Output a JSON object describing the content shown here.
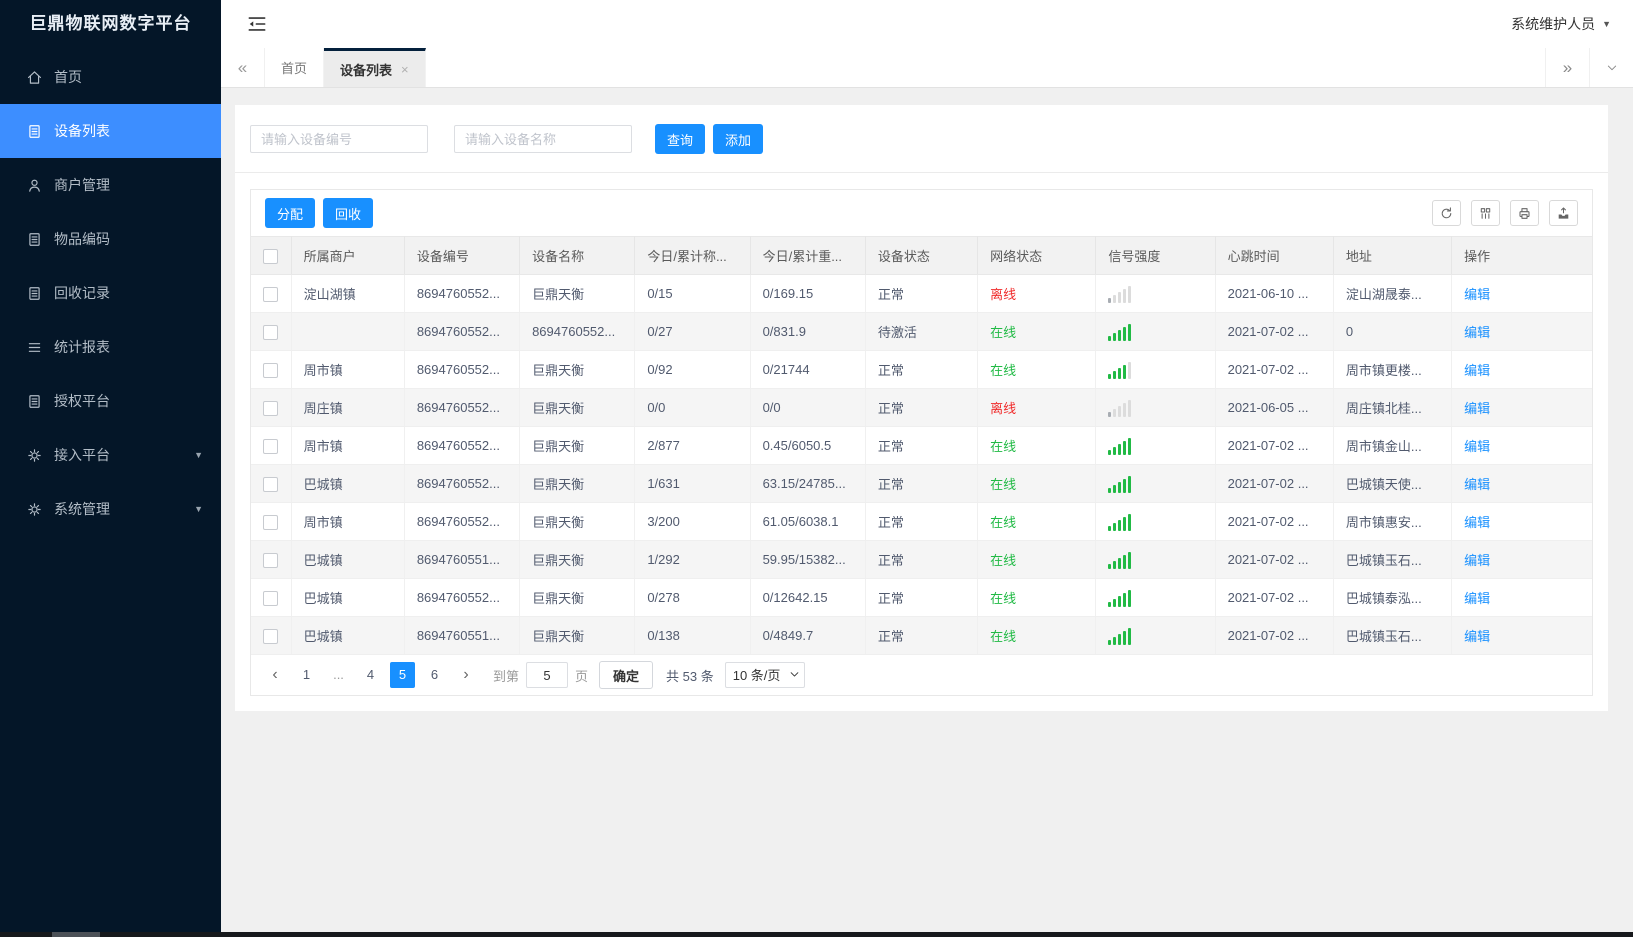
{
  "app": {
    "title": "巨鼎物联网数字平台",
    "user_name": "系统维护人员"
  },
  "sidebar": {
    "items": [
      {
        "key": "home",
        "label": "首页",
        "icon": "home-icon"
      },
      {
        "key": "device-list",
        "label": "设备列表",
        "icon": "doc-icon",
        "active": true
      },
      {
        "key": "merchant-mgmt",
        "label": "商户管理",
        "icon": "user-icon"
      },
      {
        "key": "item-code",
        "label": "物品编码",
        "icon": "doc-icon"
      },
      {
        "key": "recycle-records",
        "label": "回收记录",
        "icon": "doc-icon"
      },
      {
        "key": "statistics",
        "label": "统计报表",
        "icon": "lines-icon"
      },
      {
        "key": "auth-platform",
        "label": "授权平台",
        "icon": "doc-icon"
      },
      {
        "key": "access-platform",
        "label": "接入平台",
        "icon": "gear-icon",
        "expandable": true
      },
      {
        "key": "system-mgmt",
        "label": "系统管理",
        "icon": "gear-icon",
        "expandable": true
      }
    ]
  },
  "tabs": {
    "scroll_left": "«",
    "scroll_right": "»",
    "items": [
      {
        "key": "home",
        "label": "首页"
      },
      {
        "key": "device-list",
        "label": "设备列表",
        "active": true,
        "closable": true,
        "close_glyph": "×"
      }
    ]
  },
  "search": {
    "device_no_placeholder": "请输入设备编号",
    "device_name_placeholder": "请输入设备名称",
    "query_label": "查询",
    "add_label": "添加"
  },
  "grid": {
    "assign_label": "分配",
    "recycle_label": "回收",
    "tool_icons": [
      "refresh-icon",
      "columns-icon",
      "printer-icon",
      "export-icon"
    ]
  },
  "table": {
    "columns": [
      "所属商户",
      "设备编号",
      "设备名称",
      "今日/累计称...",
      "今日/累计重...",
      "设备状态",
      "网络状态",
      "信号强度",
      "心跳时间",
      "地址",
      "操作"
    ],
    "action_label": "编辑",
    "rows": [
      {
        "merchant": "淀山湖镇",
        "device_no": "8694760552...",
        "device_name": "巨鼎天衡",
        "today_count": "0/15",
        "today_weight": "0/169.15",
        "device_status": "正常",
        "network_status": "离线",
        "online": false,
        "signal_level": 1,
        "heartbeat": "2021-06-10 ...",
        "address": "淀山湖晟泰..."
      },
      {
        "merchant": "",
        "device_no": "8694760552...",
        "device_name": "8694760552...",
        "today_count": "0/27",
        "today_weight": "0/831.9",
        "device_status": "待激活",
        "network_status": "在线",
        "online": true,
        "signal_level": 5,
        "heartbeat": "2021-07-02 ...",
        "address": "0"
      },
      {
        "merchant": "周市镇",
        "device_no": "8694760552...",
        "device_name": "巨鼎天衡",
        "today_count": "0/92",
        "today_weight": "0/21744",
        "device_status": "正常",
        "network_status": "在线",
        "online": true,
        "signal_level": 4,
        "heartbeat": "2021-07-02 ...",
        "address": "周市镇更楼..."
      },
      {
        "merchant": "周庄镇",
        "device_no": "8694760552...",
        "device_name": "巨鼎天衡",
        "today_count": "0/0",
        "today_weight": "0/0",
        "device_status": "正常",
        "network_status": "离线",
        "online": false,
        "signal_level": 1,
        "heartbeat": "2021-06-05 ...",
        "address": "周庄镇北桂..."
      },
      {
        "merchant": "周市镇",
        "device_no": "8694760552...",
        "device_name": "巨鼎天衡",
        "today_count": "2/877",
        "today_weight": "0.45/6050.5",
        "device_status": "正常",
        "network_status": "在线",
        "online": true,
        "signal_level": 5,
        "heartbeat": "2021-07-02 ...",
        "address": "周市镇金山..."
      },
      {
        "merchant": "巴城镇",
        "device_no": "8694760552...",
        "device_name": "巨鼎天衡",
        "today_count": "1/631",
        "today_weight": "63.15/24785...",
        "device_status": "正常",
        "network_status": "在线",
        "online": true,
        "signal_level": 5,
        "heartbeat": "2021-07-02 ...",
        "address": "巴城镇天使..."
      },
      {
        "merchant": "周市镇",
        "device_no": "8694760552...",
        "device_name": "巨鼎天衡",
        "today_count": "3/200",
        "today_weight": "61.05/6038.1",
        "device_status": "正常",
        "network_status": "在线",
        "online": true,
        "signal_level": 5,
        "heartbeat": "2021-07-02 ...",
        "address": "周市镇惠安..."
      },
      {
        "merchant": "巴城镇",
        "device_no": "8694760551...",
        "device_name": "巨鼎天衡",
        "today_count": "1/292",
        "today_weight": "59.95/15382...",
        "device_status": "正常",
        "network_status": "在线",
        "online": true,
        "signal_level": 5,
        "heartbeat": "2021-07-02 ...",
        "address": "巴城镇玉石..."
      },
      {
        "merchant": "巴城镇",
        "device_no": "8694760552...",
        "device_name": "巨鼎天衡",
        "today_count": "0/278",
        "today_weight": "0/12642.15",
        "device_status": "正常",
        "network_status": "在线",
        "online": true,
        "signal_level": 5,
        "heartbeat": "2021-07-02 ...",
        "address": "巴城镇泰泓..."
      },
      {
        "merchant": "巴城镇",
        "device_no": "8694760551...",
        "device_name": "巨鼎天衡",
        "today_count": "0/138",
        "today_weight": "0/4849.7",
        "device_status": "正常",
        "network_status": "在线",
        "online": true,
        "signal_level": 5,
        "heartbeat": "2021-07-02 ...",
        "address": "巴城镇玉石..."
      }
    ]
  },
  "pagination": {
    "prev_glyph": "‹",
    "next_glyph": "›",
    "pages": [
      {
        "label": "1"
      },
      {
        "label": "...",
        "ellipsis": true
      },
      {
        "label": "4"
      },
      {
        "label": "5",
        "active": true
      },
      {
        "label": "6"
      }
    ],
    "goto_label": "到第",
    "goto_value": "5",
    "unit_label": "页",
    "confirm_label": "确定",
    "total_label": "共 53 条",
    "page_size_label": "10 条/页"
  },
  "colors": {
    "primary_blue": "#1890ff",
    "sidebar_active_blue": "#3d8eff",
    "online_green": "#21ba45",
    "offline_red": "#f02b2b",
    "sidebar_bg": "#041628"
  }
}
